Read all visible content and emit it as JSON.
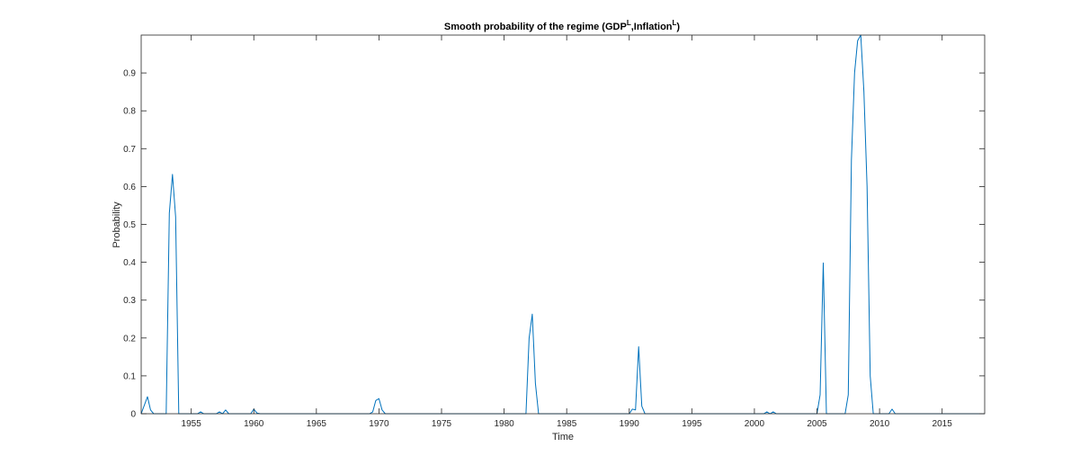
{
  "chart_data": {
    "type": "line",
    "title": {
      "text": "Smooth probability of the regime (GDP",
      "sup1": "L",
      "mid": ",Inflation",
      "sup2": "L",
      "end": ")"
    },
    "xlabel": "Time",
    "ylabel": "Probability",
    "xlim": [
      1951,
      2018.4
    ],
    "ylim": [
      0,
      1
    ],
    "xticks": [
      1955,
      1960,
      1965,
      1970,
      1975,
      1980,
      1985,
      1990,
      1995,
      2000,
      2005,
      2010,
      2015
    ],
    "xtick_labels": [
      "1955",
      "1960",
      "1965",
      "1970",
      "1975",
      "1980",
      "1985",
      "1990",
      "1995",
      "2000",
      "2005",
      "2010",
      "2015"
    ],
    "yticks": [
      0,
      0.1,
      0.2,
      0.3,
      0.4,
      0.5,
      0.6,
      0.7,
      0.8,
      0.9
    ],
    "ytick_labels": [
      "0",
      "0.1",
      "0.2",
      "0.3",
      "0.4",
      "0.5",
      "0.6",
      "0.7",
      "0.8",
      "0.9"
    ],
    "grid": false,
    "colors": {
      "line": "#0072BD",
      "axes": "#262626"
    },
    "series": [
      {
        "x": [
          1951,
          1951.5,
          1951.75,
          1952,
          1953,
          1953.25,
          1953.5,
          1953.75,
          1954,
          1954.25,
          1955.5,
          1955.75,
          1956,
          1956.25,
          1957,
          1957.25,
          1957.5,
          1957.75,
          1958,
          1959.75,
          1960,
          1960.25,
          1960.5,
          1969.25,
          1969.5,
          1969.75,
          1970,
          1970.25,
          1970.5,
          1981.75,
          1982,
          1982.25,
          1982.5,
          1982.75,
          1990,
          1990.25,
          1990.5,
          1990.75,
          1991,
          1991.25,
          2000.75,
          2001,
          2001.25,
          2001.5,
          2001.75,
          2005,
          2005.25,
          2005.5,
          2005.75,
          2007.25,
          2007.5,
          2007.75,
          2008,
          2008.25,
          2008.5,
          2008.75,
          2009,
          2009.25,
          2009.5,
          2009.75,
          2010.75,
          2011,
          2011.25,
          2018.4
        ],
        "y": [
          0,
          0.045,
          0.01,
          0,
          0,
          0.53,
          0.632,
          0.52,
          0,
          0,
          0,
          0.005,
          0,
          0,
          0,
          0.005,
          0,
          0.01,
          0,
          0,
          0.012,
          0.002,
          0,
          0,
          0.005,
          0.035,
          0.04,
          0.01,
          0,
          0,
          0.2,
          0.263,
          0.08,
          0,
          0,
          0.012,
          0.01,
          0.177,
          0.02,
          0,
          0,
          0.005,
          0,
          0.005,
          0,
          0,
          0.05,
          0.398,
          0,
          0,
          0.05,
          0.67,
          0.9,
          0.985,
          1.0,
          0.85,
          0.6,
          0.1,
          0,
          0,
          0,
          0.012,
          0,
          0
        ]
      }
    ]
  }
}
